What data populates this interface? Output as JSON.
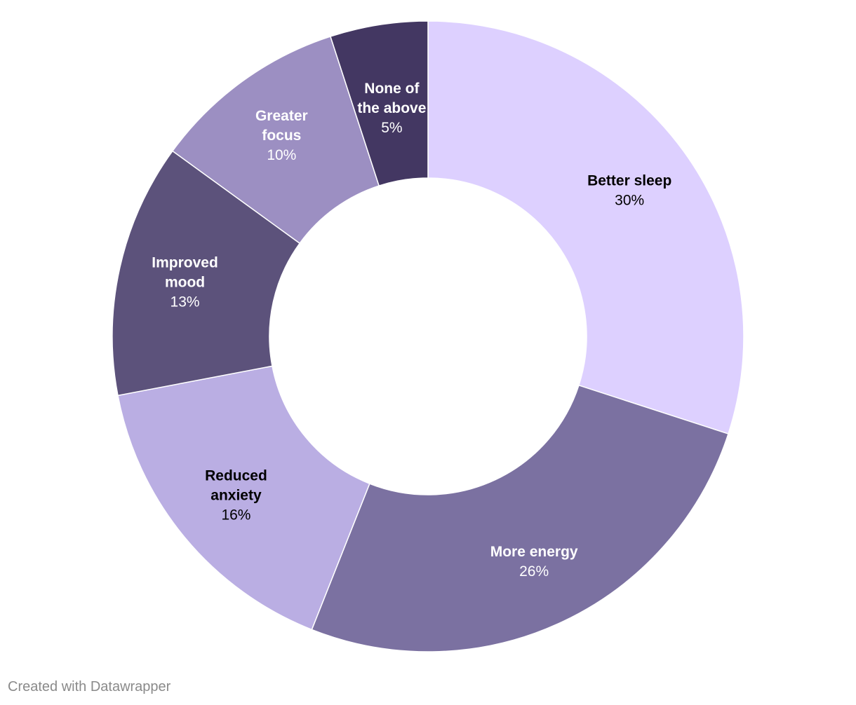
{
  "chart_data": {
    "type": "pie",
    "variant": "donut",
    "title": "",
    "slices": [
      {
        "label": "Better sleep",
        "label_lines": [
          "Better sleep"
        ],
        "value": 30,
        "display": "30%",
        "color": "#ddd0ff",
        "text_color": "#000000"
      },
      {
        "label": "More energy",
        "label_lines": [
          "More energy"
        ],
        "value": 26,
        "display": "26%",
        "color": "#7b71a1",
        "text_color": "#ffffff"
      },
      {
        "label": "Reduced anxiety",
        "label_lines": [
          "Reduced",
          "anxiety"
        ],
        "value": 16,
        "display": "16%",
        "color": "#baaee3",
        "text_color": "#000000"
      },
      {
        "label": "Improved mood",
        "label_lines": [
          "Improved",
          "mood"
        ],
        "value": 13,
        "display": "13%",
        "color": "#5c527b",
        "text_color": "#ffffff"
      },
      {
        "label": "Greater focus",
        "label_lines": [
          "Greater",
          "focus"
        ],
        "value": 10,
        "display": "10%",
        "color": "#9c8fc2",
        "text_color": "#ffffff"
      },
      {
        "label": "None of the above",
        "label_lines": [
          "None of",
          "the above"
        ],
        "value": 5,
        "display": "5%",
        "color": "#433762",
        "text_color": "#ffffff"
      }
    ]
  },
  "footer": {
    "credit": "Created with Datawrapper"
  }
}
